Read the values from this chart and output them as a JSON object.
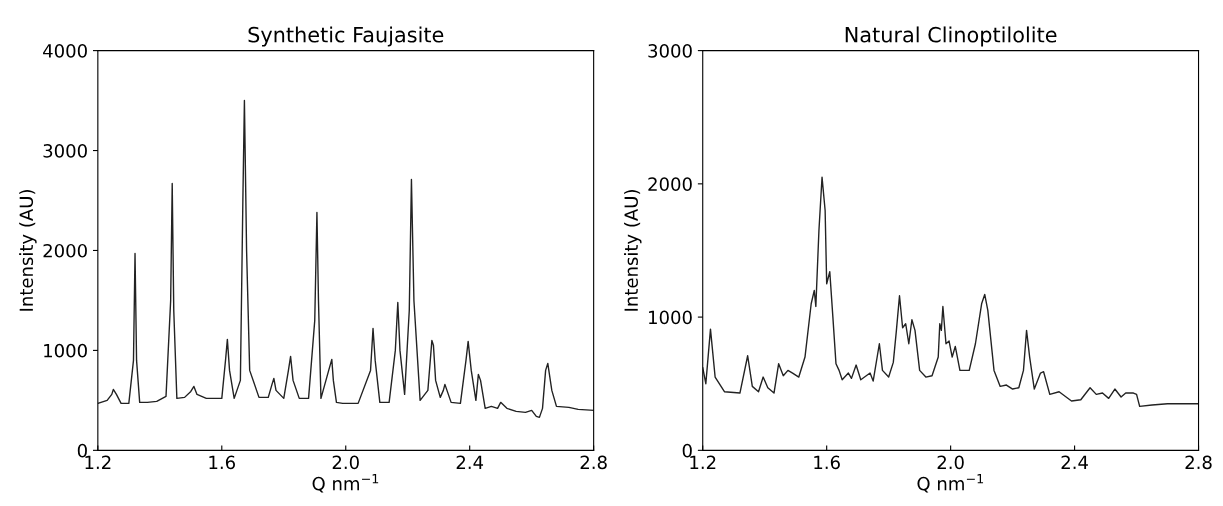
{
  "chart_data": [
    {
      "type": "line",
      "title": "Synthetic Faujasite",
      "xlabel": "Q nm$^{−1}$",
      "ylabel": "Intensity (AU)",
      "xlim": [
        1.2,
        2.8
      ],
      "ylim": [
        0,
        4000
      ],
      "xticks": [
        1.2,
        1.6,
        {
          "value": 2.0,
          "label": "2.0"
        },
        2.4,
        2.8
      ],
      "yticks": [
        0,
        1000,
        2000,
        3000,
        4000
      ],
      "grid": false,
      "marker": "none",
      "line_style": "solid",
      "series": [
        {
          "color": "#222222",
          "x": [
            1.2,
            1.23,
            1.245,
            1.25,
            1.26,
            1.275,
            1.3,
            1.315,
            1.32,
            1.325,
            1.335,
            1.36,
            1.39,
            1.42,
            1.435,
            1.44,
            1.445,
            1.455,
            1.48,
            1.5,
            1.51,
            1.52,
            1.55,
            1.6,
            1.612,
            1.618,
            1.625,
            1.64,
            1.66,
            1.668,
            1.673,
            1.68,
            1.69,
            1.72,
            1.75,
            1.762,
            1.768,
            1.775,
            1.8,
            1.815,
            1.822,
            1.83,
            1.85,
            1.88,
            1.9,
            1.907,
            1.912,
            1.92,
            1.945,
            1.955,
            1.96,
            1.97,
            1.99,
            2.04,
            2.08,
            2.088,
            2.095,
            2.11,
            2.14,
            2.16,
            2.168,
            2.175,
            2.19,
            2.205,
            2.212,
            2.22,
            2.24,
            2.265,
            2.278,
            2.283,
            2.29,
            2.305,
            2.315,
            2.32,
            2.34,
            2.37,
            2.388,
            2.395,
            2.405,
            2.42,
            2.428,
            2.435,
            2.45,
            2.47,
            2.49,
            2.5,
            2.52,
            2.55,
            2.58,
            2.6,
            2.615,
            2.625,
            2.635,
            2.645,
            2.652,
            2.665,
            2.68,
            2.72,
            2.75,
            2.8
          ],
          "values": [
            470,
            500,
            560,
            610,
            560,
            470,
            470,
            900,
            1970,
            900,
            480,
            480,
            490,
            540,
            1500,
            2670,
            1400,
            520,
            530,
            590,
            640,
            560,
            520,
            520,
            900,
            1110,
            800,
            520,
            700,
            2500,
            3500,
            2000,
            800,
            530,
            530,
            660,
            720,
            600,
            520,
            800,
            940,
            700,
            520,
            520,
            1300,
            2380,
            1500,
            520,
            800,
            910,
            700,
            480,
            470,
            470,
            800,
            1220,
            900,
            480,
            480,
            1000,
            1480,
            1000,
            560,
            1400,
            2710,
            1500,
            500,
            600,
            1100,
            1050,
            700,
            530,
            600,
            660,
            480,
            470,
            900,
            1090,
            800,
            500,
            760,
            700,
            420,
            440,
            420,
            480,
            420,
            390,
            380,
            400,
            340,
            330,
            420,
            800,
            870,
            600,
            440,
            430,
            410,
            400
          ]
        }
      ]
    },
    {
      "type": "line",
      "title": "Natural Clinoptilolite",
      "xlabel": "Q nm$^{−1}$",
      "ylabel": "Intensity (AU)",
      "xlim": [
        1.2,
        2.8
      ],
      "ylim": [
        0,
        3000
      ],
      "xticks": [
        1.2,
        1.6,
        {
          "value": 2.0,
          "label": "2.0"
        },
        2.4,
        2.8
      ],
      "yticks": [
        0,
        1000,
        2000,
        3000
      ],
      "grid": false,
      "marker": "none",
      "line_style": "solid",
      "series": [
        {
          "color": "#222222",
          "x": [
            1.2,
            1.21,
            1.225,
            1.24,
            1.27,
            1.32,
            1.345,
            1.36,
            1.38,
            1.395,
            1.41,
            1.43,
            1.445,
            1.46,
            1.475,
            1.49,
            1.51,
            1.53,
            1.55,
            1.56,
            1.565,
            1.575,
            1.585,
            1.595,
            1.6,
            1.61,
            1.62,
            1.63,
            1.64,
            1.65,
            1.67,
            1.68,
            1.695,
            1.71,
            1.74,
            1.75,
            1.77,
            1.78,
            1.8,
            1.815,
            1.825,
            1.835,
            1.845,
            1.855,
            1.865,
            1.875,
            1.885,
            1.9,
            1.92,
            1.94,
            1.96,
            1.965,
            1.97,
            1.975,
            1.985,
            1.995,
            2.005,
            2.015,
            2.03,
            2.06,
            2.08,
            2.1,
            2.11,
            2.12,
            2.14,
            2.16,
            2.18,
            2.2,
            2.22,
            2.235,
            2.245,
            2.255,
            2.27,
            2.29,
            2.3,
            2.32,
            2.35,
            2.39,
            2.42,
            2.45,
            2.47,
            2.49,
            2.51,
            2.53,
            2.55,
            2.565,
            2.59,
            2.6,
            2.61,
            2.65,
            2.7,
            2.75,
            2.8
          ],
          "values": [
            620,
            500,
            910,
            550,
            440,
            430,
            710,
            480,
            440,
            550,
            470,
            430,
            650,
            560,
            600,
            580,
            550,
            700,
            1100,
            1200,
            1080,
            1650,
            2050,
            1800,
            1250,
            1340,
            1000,
            650,
            600,
            530,
            580,
            540,
            640,
            530,
            580,
            520,
            800,
            600,
            550,
            660,
            900,
            1160,
            920,
            950,
            800,
            980,
            900,
            600,
            550,
            560,
            700,
            950,
            900,
            1080,
            800,
            820,
            700,
            780,
            600,
            600,
            800,
            1100,
            1170,
            1050,
            600,
            480,
            490,
            460,
            470,
            600,
            900,
            700,
            460,
            580,
            590,
            420,
            440,
            370,
            380,
            470,
            420,
            430,
            390,
            460,
            400,
            430,
            430,
            420,
            330,
            340,
            350,
            350,
            350
          ]
        }
      ]
    }
  ]
}
